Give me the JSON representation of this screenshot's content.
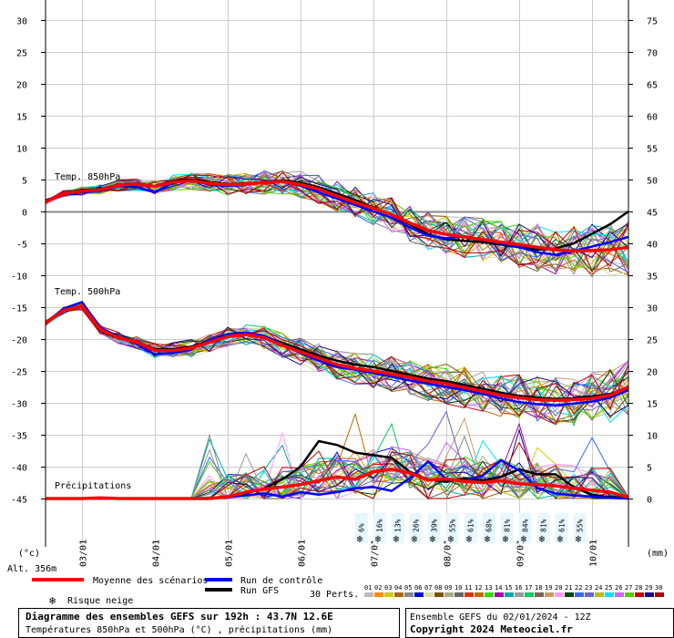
{
  "chart_data": {
    "type": "line",
    "x_ticks": [
      "03/01",
      "04/01",
      "05/01",
      "06/01",
      "07/01",
      "08/01",
      "09/01",
      "10/01"
    ],
    "y_left_ticks": [
      30,
      25,
      20,
      15,
      10,
      5,
      0,
      -5,
      -10,
      -15,
      -20,
      -25,
      -30,
      -35,
      -40,
      -45
    ],
    "y_right_ticks": [
      75,
      70,
      65,
      60,
      55,
      50,
      45,
      40,
      35,
      30,
      25,
      20,
      15,
      10,
      5,
      0
    ],
    "y_left_unit": "(°c)",
    "y_right_unit": "(mm)",
    "altitude_label": "Alt. 356m",
    "temp_850_label": "Temp. 850hPa",
    "temp_500_label": "Temp. 500hPa",
    "precip_label": "Précipitations",
    "colors": {
      "mean": "#ff0000",
      "control": "#0000ff",
      "gfs": "#000000",
      "snow": "#33aaff"
    },
    "series": [
      {
        "name": "Moyenne des scénarios",
        "group": "850hPa",
        "x": [
          0,
          6,
          12,
          18,
          24,
          30,
          36,
          42,
          48,
          54,
          60,
          66,
          72,
          78,
          84,
          90,
          96,
          102,
          108,
          114,
          120,
          126,
          132,
          138,
          144,
          150,
          156,
          162,
          168,
          174,
          180,
          186,
          192
        ],
        "values": [
          1.5,
          2.8,
          3.2,
          3.4,
          4.1,
          4.3,
          3.9,
          4.6,
          4.8,
          4.4,
          4.2,
          4.3,
          4.5,
          4.7,
          4.2,
          3.5,
          2.4,
          1.4,
          0.5,
          -0.5,
          -1.8,
          -3.0,
          -3.6,
          -4.0,
          -4.4,
          -4.8,
          -5.2,
          -5.6,
          -6.0,
          -6.2,
          -6.1,
          -6.0,
          -5.6
        ]
      },
      {
        "name": "Run de contrôle",
        "group": "850hPa",
        "x": [
          0,
          6,
          12,
          18,
          24,
          30,
          36,
          42,
          48,
          54,
          60,
          66,
          72,
          78,
          84,
          90,
          96,
          102,
          108,
          114,
          120,
          126,
          132,
          138,
          144,
          150,
          156,
          162,
          168,
          174,
          180,
          186,
          192
        ],
        "values": [
          1.5,
          2.6,
          3.0,
          3.2,
          4.0,
          3.8,
          3.0,
          4.5,
          4.9,
          4.2,
          4.0,
          4.2,
          4.6,
          4.8,
          4.0,
          3.0,
          2.0,
          1.0,
          0.0,
          -1.0,
          -2.5,
          -3.8,
          -4.2,
          -3.9,
          -4.5,
          -5.0,
          -5.6,
          -6.4,
          -6.8,
          -6.2,
          -5.5,
          -4.8,
          -4.0
        ]
      },
      {
        "name": "Run GFS",
        "group": "850hPa",
        "x": [
          0,
          6,
          12,
          18,
          24,
          30,
          36,
          42,
          48,
          54,
          60,
          66,
          72,
          78,
          84,
          90,
          96,
          102,
          108,
          114,
          120,
          126,
          132,
          138,
          144,
          150,
          156,
          162,
          168,
          174,
          180,
          186,
          192
        ],
        "values": [
          1.5,
          2.9,
          3.4,
          3.5,
          4.2,
          4.4,
          4.0,
          4.8,
          5.0,
          4.6,
          4.3,
          4.4,
          4.6,
          4.9,
          4.5,
          3.8,
          2.8,
          1.8,
          0.6,
          -0.6,
          -2.0,
          -3.6,
          -4.4,
          -4.6,
          -4.8,
          -5.2,
          -5.6,
          -6.0,
          -5.8,
          -5.0,
          -3.5,
          -2.0,
          0.0
        ]
      },
      {
        "name": "Moyenne des scénarios",
        "group": "500hPa",
        "x": [
          0,
          6,
          12,
          18,
          24,
          30,
          36,
          42,
          48,
          54,
          60,
          66,
          72,
          78,
          84,
          90,
          96,
          102,
          108,
          114,
          120,
          126,
          132,
          138,
          144,
          150,
          156,
          162,
          168,
          174,
          180,
          186,
          192
        ],
        "values": [
          -17.5,
          -15.5,
          -14.8,
          -18.5,
          -19.8,
          -20.5,
          -21.8,
          -21.8,
          -21.4,
          -20.5,
          -19.6,
          -19.3,
          -19.8,
          -21.0,
          -22.0,
          -23.0,
          -24.0,
          -24.6,
          -25.0,
          -25.5,
          -26.0,
          -26.6,
          -27.0,
          -27.6,
          -28.2,
          -28.8,
          -29.2,
          -29.5,
          -29.6,
          -29.5,
          -29.3,
          -28.8,
          -27.5
        ]
      },
      {
        "name": "Run de contrôle",
        "group": "500hPa",
        "x": [
          0,
          6,
          12,
          18,
          24,
          30,
          36,
          42,
          48,
          54,
          60,
          66,
          72,
          78,
          84,
          90,
          96,
          102,
          108,
          114,
          120,
          126,
          132,
          138,
          144,
          150,
          156,
          162,
          168,
          174,
          180,
          186,
          192
        ],
        "values": [
          -17.5,
          -15.2,
          -14.2,
          -18.2,
          -19.6,
          -20.8,
          -22.4,
          -22.2,
          -21.6,
          -20.2,
          -19.2,
          -19.0,
          -19.5,
          -20.8,
          -22.2,
          -23.4,
          -24.4,
          -24.8,
          -25.3,
          -25.9,
          -26.5,
          -27.0,
          -27.5,
          -28.0,
          -28.6,
          -29.3,
          -29.9,
          -30.2,
          -30.4,
          -30.1,
          -29.8,
          -29.2,
          -28.0
        ]
      },
      {
        "name": "Run GFS",
        "group": "500hPa",
        "x": [
          0,
          6,
          12,
          18,
          24,
          30,
          36,
          42,
          48,
          54,
          60,
          66,
          72,
          78,
          84,
          90,
          96,
          102,
          108,
          114,
          120,
          126,
          132,
          138,
          144,
          150,
          156,
          162,
          168,
          174,
          180,
          186,
          192
        ],
        "values": [
          -17.5,
          -15.6,
          -14.9,
          -18.6,
          -19.9,
          -20.4,
          -21.6,
          -21.6,
          -21.2,
          -20.3,
          -19.4,
          -19.2,
          -19.6,
          -20.6,
          -21.6,
          -22.6,
          -23.4,
          -24.0,
          -24.4,
          -25.0,
          -25.6,
          -26.2,
          -26.6,
          -27.2,
          -27.8,
          -28.4,
          -28.9,
          -29.2,
          -29.4,
          -29.3,
          -29.0,
          -28.6,
          -27.6
        ]
      },
      {
        "name": "Moyenne des scénarios",
        "group": "precip",
        "x": [
          0,
          6,
          12,
          18,
          24,
          30,
          36,
          42,
          48,
          54,
          60,
          66,
          72,
          78,
          84,
          90,
          96,
          102,
          108,
          114,
          120,
          126,
          132,
          138,
          144,
          150,
          156,
          162,
          168,
          174,
          180,
          186,
          192
        ],
        "values": [
          0,
          0,
          0,
          0.1,
          0,
          0,
          0,
          0,
          0,
          0,
          0.3,
          1.0,
          1.5,
          1.8,
          2.2,
          2.8,
          3.4,
          3.0,
          4.2,
          4.6,
          4.0,
          2.9,
          3.1,
          2.7,
          2.5,
          2.8,
          2.3,
          2.2,
          2.0,
          1.6,
          1.3,
          1.0,
          0.2
        ]
      },
      {
        "name": "Run de contrôle",
        "group": "precip",
        "x": [
          0,
          6,
          12,
          18,
          24,
          30,
          36,
          42,
          48,
          54,
          60,
          66,
          72,
          78,
          84,
          90,
          96,
          102,
          108,
          114,
          120,
          126,
          132,
          138,
          144,
          150,
          156,
          162,
          168,
          174,
          180,
          186,
          192
        ],
        "values": [
          0,
          0,
          0,
          0,
          0,
          0,
          0,
          0,
          0,
          0,
          0.2,
          0.5,
          0.8,
          0.3,
          1.0,
          0.6,
          1.0,
          1.6,
          1.8,
          1.2,
          3.2,
          5.8,
          3.0,
          2.8,
          3.6,
          6.0,
          4.4,
          1.6,
          0.8,
          0.5,
          0.3,
          0.1,
          0
        ]
      },
      {
        "name": "Run GFS",
        "group": "precip",
        "x": [
          0,
          6,
          12,
          18,
          24,
          30,
          36,
          42,
          48,
          54,
          60,
          66,
          72,
          78,
          84,
          90,
          96,
          102,
          108,
          114,
          120,
          126,
          132,
          138,
          144,
          150,
          156,
          162,
          168,
          174,
          180,
          186,
          192
        ],
        "values": [
          0,
          0,
          0,
          0,
          0,
          0,
          0,
          0,
          0,
          0,
          0.2,
          0.8,
          1.6,
          3.0,
          5.0,
          9.0,
          8.4,
          7.2,
          6.8,
          6.4,
          4.2,
          3.0,
          2.6,
          3.2,
          2.8,
          3.4,
          4.6,
          3.8,
          3.8,
          1.8,
          0.6,
          0.2,
          0
        ]
      }
    ],
    "snow_risk": [
      {
        "x": 104,
        "pct": "6%"
      },
      {
        "x": 110,
        "pct": "16%"
      },
      {
        "x": 116,
        "pct": "13%"
      },
      {
        "x": 122,
        "pct": "26%"
      },
      {
        "x": 128,
        "pct": "39%"
      },
      {
        "x": 134,
        "pct": "55%"
      },
      {
        "x": 140,
        "pct": "61%"
      },
      {
        "x": 146,
        "pct": "68%"
      },
      {
        "x": 152,
        "pct": "81%"
      },
      {
        "x": 158,
        "pct": "84%"
      },
      {
        "x": 164,
        "pct": "81%"
      },
      {
        "x": 170,
        "pct": "61%"
      },
      {
        "x": 176,
        "pct": "55%"
      }
    ]
  },
  "legend": {
    "mean_label": "Moyenne des scénarios",
    "control_label": "Run de contrôle",
    "gfs_label": "Run GFS",
    "snow_label": "Risque neige",
    "perts_label": "30 Perts.",
    "pert_numbers": [
      "01",
      "02",
      "03",
      "04",
      "05",
      "06",
      "07",
      "08",
      "09",
      "10",
      "11",
      "12",
      "13",
      "14",
      "15",
      "16",
      "17",
      "18",
      "19",
      "20",
      "21",
      "22",
      "23",
      "24",
      "25",
      "26",
      "27",
      "28",
      "29",
      "30"
    ],
    "pert_colors": [
      "#bbbbbb",
      "#ff8800",
      "#cccc00",
      "#aa6600",
      "#888888",
      "#0000cc",
      "#ddddaa",
      "#775500",
      "#aaaa88",
      "#666666",
      "#dd3300",
      "#cc6600",
      "#33dd00",
      "#aa00aa",
      "#00aaaa",
      "#999999",
      "#00cc66",
      "#776655",
      "#cc9966",
      "#ff99ff",
      "#004400",
      "#3366ff",
      "#6666cc",
      "#bbbb00",
      "#00ddff",
      "#cc66ff",
      "#55cc00",
      "#cc0000",
      "#220088",
      "#aa0000"
    ]
  },
  "footer": {
    "title": "Diagramme des ensembles GEFS sur 192h : 43.7N 12.6E",
    "subtitle": "Températures 850hPa et 500hPa (°C) , précipitations (mm)",
    "run_info": "Ensemble GEFS du 02/01/2024 - 12Z",
    "copyright": "Copyright 2024 Meteociel.fr"
  }
}
